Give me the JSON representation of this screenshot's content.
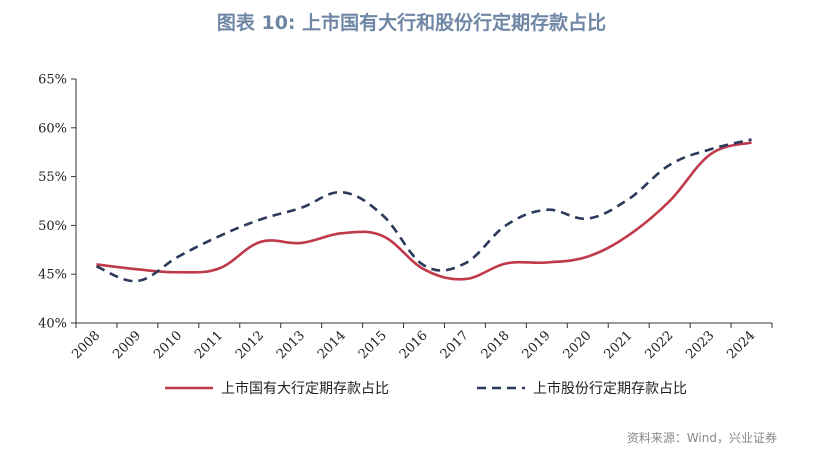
{
  "chart_data": {
    "type": "line",
    "title": "图表 10: 上市国有大行和股份行定期存款占比",
    "x": [
      "2008",
      "2009",
      "2010",
      "2011",
      "2012",
      "2013",
      "2014",
      "2015",
      "2016",
      "2017",
      "2018",
      "2019",
      "2020",
      "2021",
      "2022",
      "2023",
      "2024"
    ],
    "series": [
      {
        "name": "上市国有大行定期存款占比",
        "color": "#c0394b",
        "style": "solid",
        "values": [
          46.0,
          45.5,
          45.2,
          45.6,
          48.3,
          48.2,
          49.2,
          48.9,
          45.5,
          44.5,
          46.1,
          46.2,
          46.8,
          49.0,
          52.5,
          57.3,
          58.5
        ]
      },
      {
        "name": "上市股份行定期存款占比",
        "color": "#2b3a5a",
        "style": "dashed",
        "values": [
          45.8,
          44.3,
          46.8,
          48.9,
          50.6,
          51.8,
          53.4,
          51.0,
          45.9,
          46.1,
          50.0,
          51.6,
          50.7,
          52.7,
          56.2,
          57.8,
          58.8
        ]
      }
    ],
    "ylim": [
      40,
      65
    ],
    "yticks": [
      "40%",
      "45%",
      "50%",
      "55%",
      "60%",
      "65%"
    ],
    "grid": false,
    "legend": "bottom"
  },
  "source": "资料来源：Wind，兴业证券"
}
